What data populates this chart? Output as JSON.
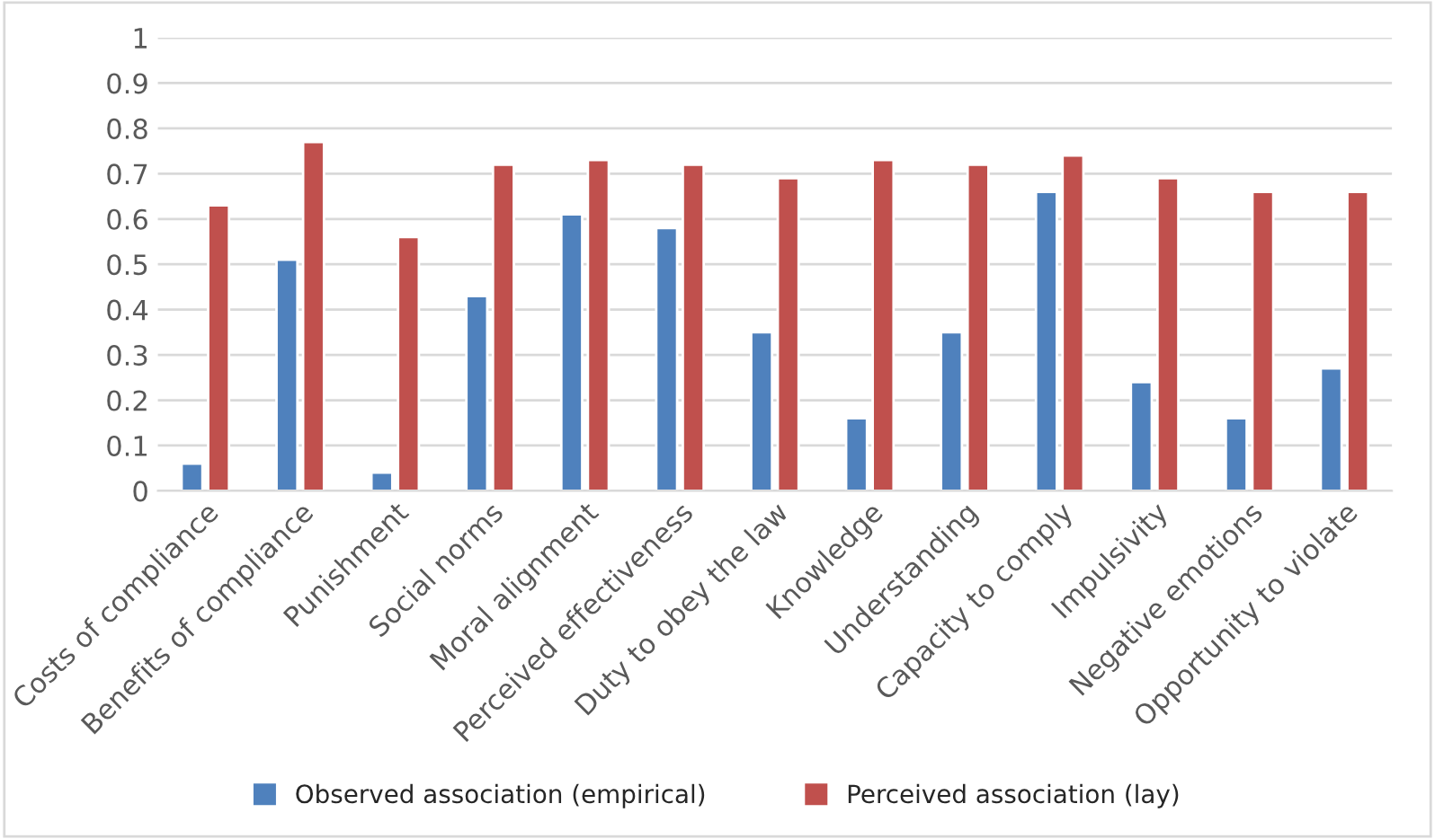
{
  "chart_data": {
    "type": "bar",
    "categories": [
      "Costs of compliance",
      "Benefits of compliance",
      "Punishment",
      "Social norms",
      "Moral alignment",
      "Perceived effectiveness",
      "Duty to obey the law",
      "Knowledge",
      "Understanding",
      "Capacity to comply",
      "Impulsivity",
      "Negative emotions",
      "Opportunity to violate"
    ],
    "series": [
      {
        "name": "Observed association (empirical)",
        "color": "#4f81bd",
        "values": [
          0.06,
          0.51,
          0.04,
          0.43,
          0.61,
          0.58,
          0.35,
          0.16,
          0.35,
          0.66,
          0.24,
          0.16,
          0.27
        ]
      },
      {
        "name": "Perceived association (lay)",
        "color": "#c0504d",
        "values": [
          0.63,
          0.77,
          0.56,
          0.72,
          0.73,
          0.72,
          0.69,
          0.73,
          0.72,
          0.74,
          0.69,
          0.66,
          0.66
        ]
      }
    ],
    "ylim": [
      0,
      1
    ],
    "yticks": [
      0,
      0.1,
      0.2,
      0.3,
      0.4,
      0.5,
      0.6,
      0.7,
      0.8,
      0.9,
      1
    ],
    "grid": "y",
    "legend": "bottom"
  }
}
